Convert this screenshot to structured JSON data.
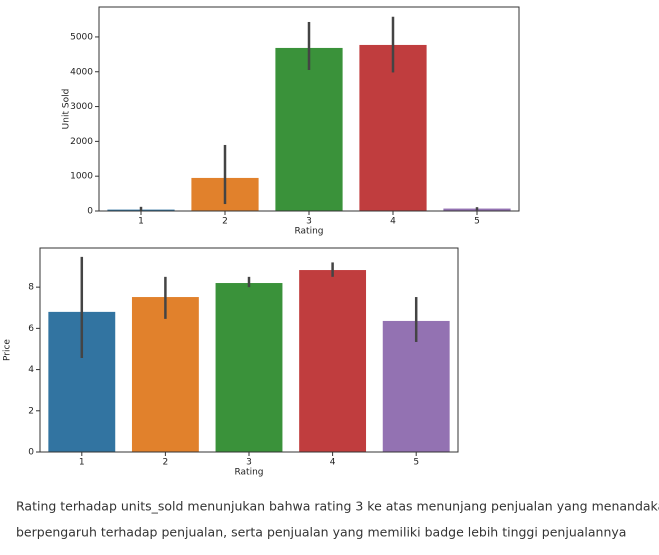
{
  "chart_data": [
    {
      "type": "bar",
      "xlabel": "Rating",
      "ylabel": "Unit Sold",
      "categories": [
        "1",
        "2",
        "3",
        "4",
        "5"
      ],
      "values": [
        40,
        950,
        4684,
        4770,
        70
      ],
      "ci_low": [
        0,
        200,
        4050,
        3980,
        20
      ],
      "ci_high": [
        120,
        1897,
        5430,
        5580,
        110
      ],
      "colors": [
        "#3274a1",
        "#e1812c",
        "#3a923a",
        "#c03d3e",
        "#9372b2"
      ],
      "ylim": [
        0,
        5860
      ],
      "yticks": [
        0,
        1000,
        2000,
        3000,
        4000,
        5000
      ]
    },
    {
      "type": "bar",
      "xlabel": "Rating",
      "ylabel": "Price",
      "categories": [
        "1",
        "2",
        "3",
        "4",
        "5"
      ],
      "values": [
        6.8,
        7.52,
        8.2,
        8.83,
        6.36
      ],
      "ci_low": [
        4.56,
        6.46,
        8.0,
        8.5,
        5.34
      ],
      "ci_high": [
        9.47,
        8.5,
        8.5,
        9.2,
        7.52
      ],
      "colors": [
        "#3274a1",
        "#e1812c",
        "#3a923a",
        "#c03d3e",
        "#9372b2"
      ],
      "ylim": [
        0,
        9.9
      ],
      "yticks": [
        0,
        2,
        4,
        6,
        8
      ]
    }
  ],
  "caption": [
    "Rating terhadap units_sold menunjukan bahwa rating 3 ke atas menunjang penjualan yang menandakan rating",
    "berpengaruh terhadap penjualan, serta penjualan yang memiliki badge lebih tinggi penjualannya"
  ]
}
